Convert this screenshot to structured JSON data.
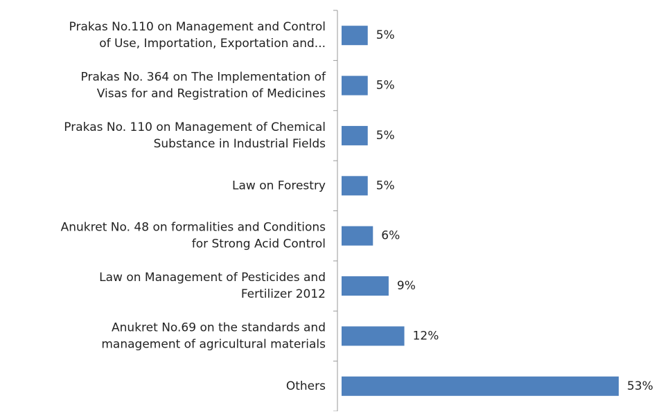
{
  "chart_data": {
    "type": "bar",
    "orientation": "horizontal",
    "categories": [
      "Prakas No.110 on Management and Control\nof Use, Importation, Exportation and...",
      "Prakas No. 364 on The Implementation of\nVisas for and Registration of Medicines",
      "Prakas No. 110 on Management of Chemical\nSubstance in Industrial Fields",
      "Law on Forestry",
      "Anukret No. 48 on formalities and Conditions\nfor Strong Acid Control",
      "Law on Management of Pesticides and\nFertilizer 2012",
      "Anukret No.69 on the standards and\nmanagement of agricultural materials",
      "Others"
    ],
    "values": [
      5,
      5,
      5,
      5,
      6,
      9,
      12,
      53
    ],
    "value_labels": [
      "5%",
      "5%",
      "5%",
      "5%",
      "6%",
      "9%",
      "12%",
      "53%"
    ],
    "color": "#4f81bd"
  }
}
